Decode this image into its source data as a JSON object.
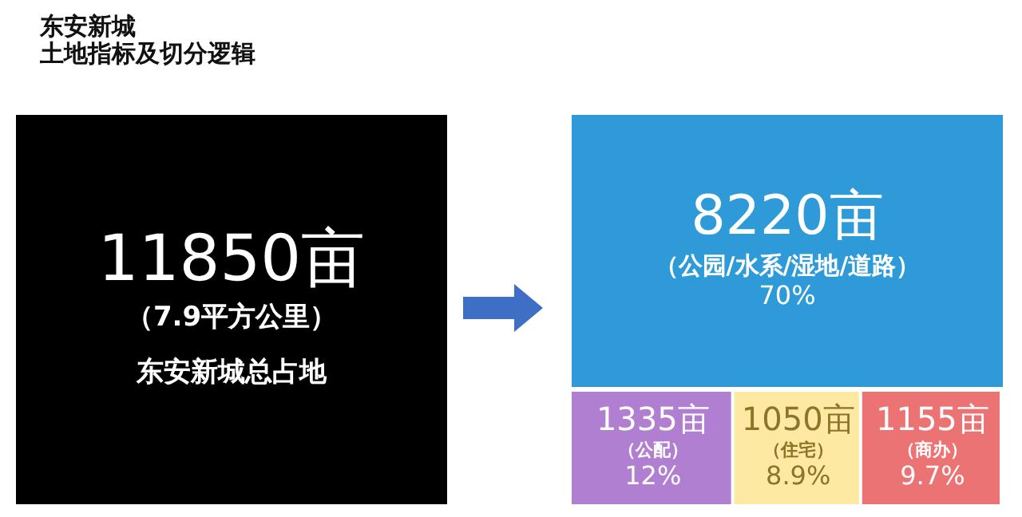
{
  "chart_data": [
    {
      "type": "other",
      "title": "东安新城",
      "subtitle": "土地指标及切分逻辑",
      "categories": [
        "东安新城总占地"
      ],
      "values": [
        11850
      ],
      "value_labels": [
        "11850亩"
      ],
      "colors": [
        "#000000"
      ],
      "annotations": [
        "（7.9平方公里）"
      ]
    },
    {
      "type": "other",
      "categories": [
        "（公园/水系/湿地/道路）",
        "（公配）",
        "（住宅）",
        "（商办）"
      ],
      "values": [
        8220,
        1335,
        1050,
        1155
      ],
      "value_labels": [
        "8220亩",
        "1335亩",
        "1050亩",
        "1155亩"
      ],
      "colors": [
        "#2e9bd8",
        "#b07fd2",
        "#fde9a2",
        "#ec7373"
      ],
      "annotations": [
        "70%",
        "12%",
        "8.9%",
        "9.7%"
      ]
    }
  ]
}
